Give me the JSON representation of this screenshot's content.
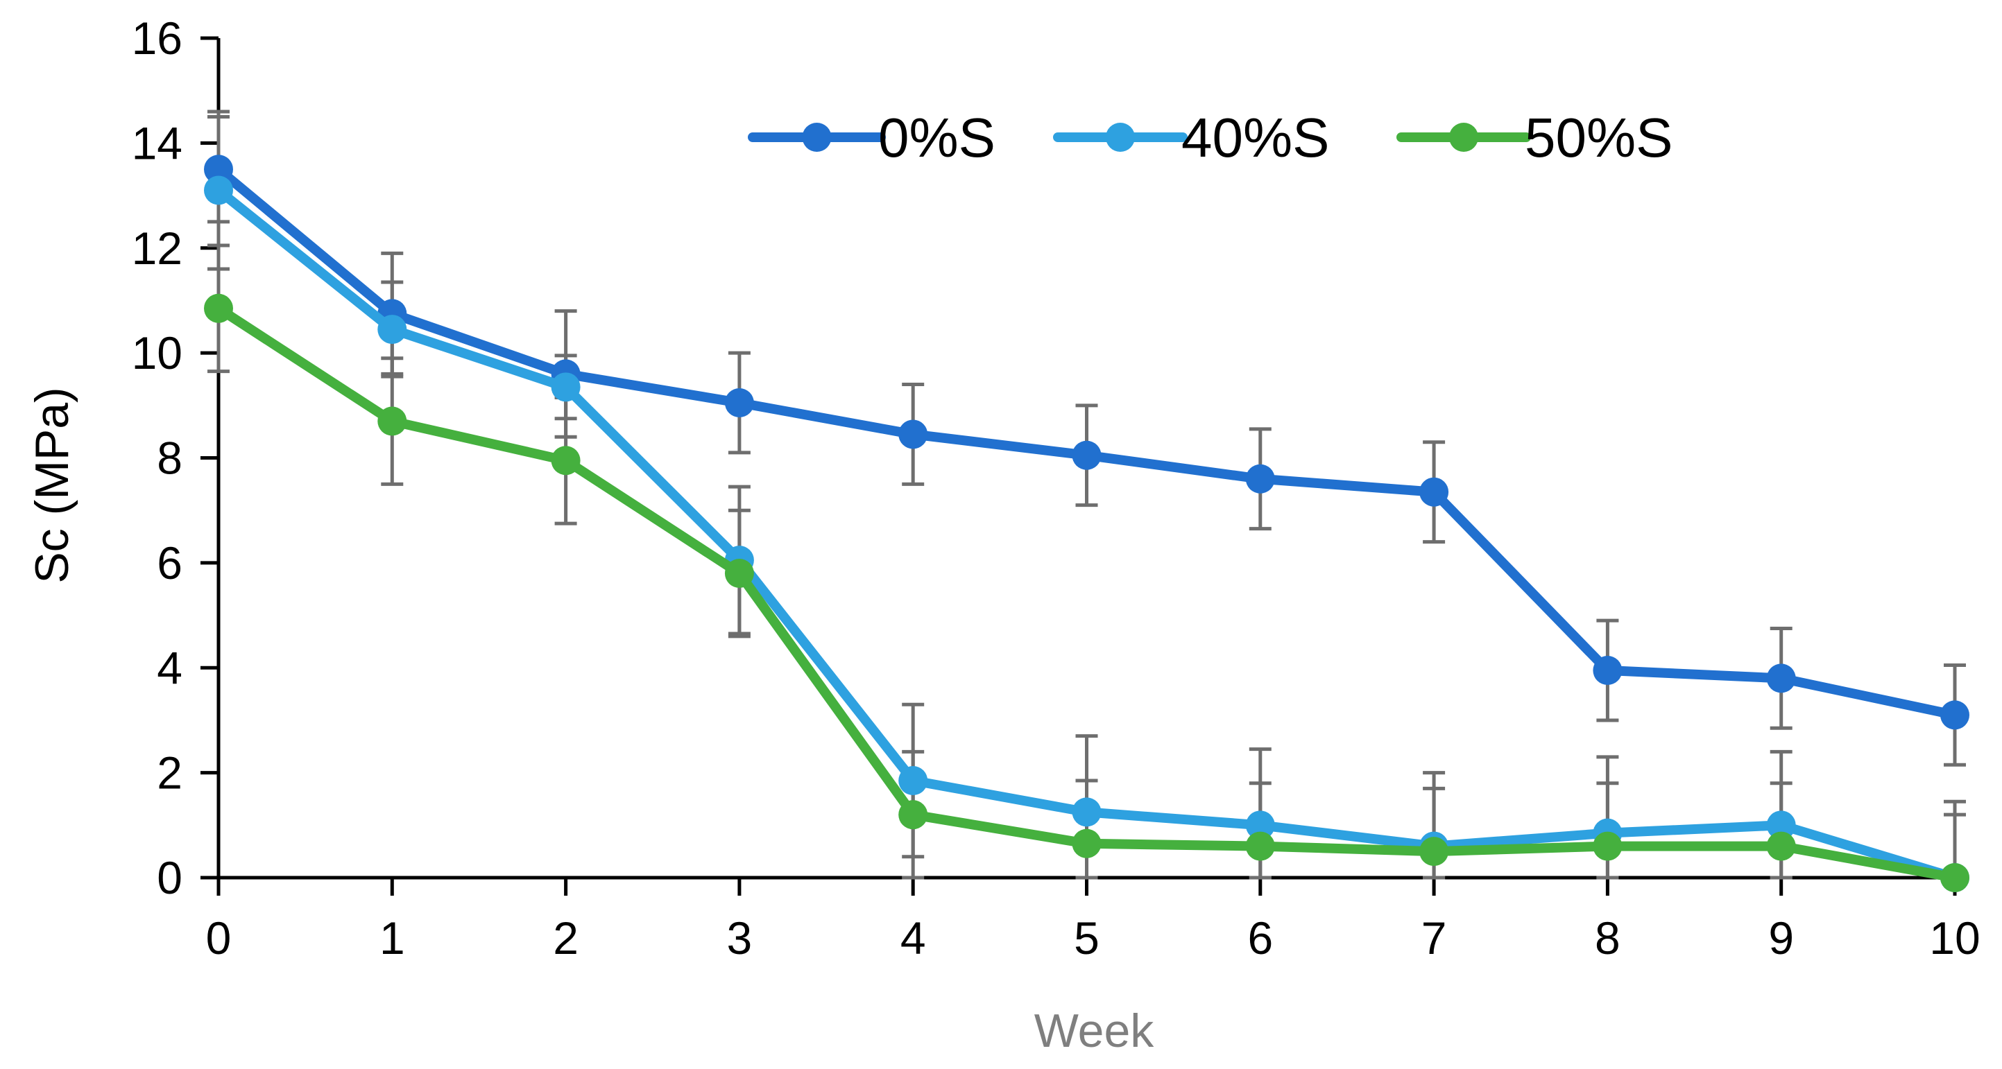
{
  "chart_data": {
    "type": "line",
    "title": "",
    "xlabel": "Week",
    "ylabel": "Sc (MPa)",
    "x": [
      0,
      1,
      2,
      3,
      4,
      5,
      6,
      7,
      8,
      9,
      10
    ],
    "xlim": [
      0,
      10
    ],
    "ylim": [
      0,
      16
    ],
    "yticks": [
      0,
      2,
      4,
      6,
      8,
      10,
      12,
      14,
      16
    ],
    "xticks": [
      0,
      1,
      2,
      3,
      4,
      5,
      6,
      7,
      8,
      9,
      10
    ],
    "grid": false,
    "legend_position": "top-center",
    "series": [
      {
        "name": "0%S",
        "color": "#2170CF",
        "values": [
          13.5,
          10.75,
          9.6,
          9.05,
          8.45,
          8.05,
          7.6,
          7.35,
          3.95,
          3.8,
          3.1
        ],
        "errors": [
          1.0,
          1.15,
          1.2,
          0.95,
          0.95,
          0.95,
          0.95,
          0.95,
          0.95,
          0.95,
          0.95
        ]
      },
      {
        "name": "40%S",
        "color": "#2EA1E0",
        "values": [
          13.1,
          10.45,
          9.35,
          6.05,
          1.85,
          1.25,
          1.0,
          0.6,
          0.85,
          1.0,
          0.0
        ],
        "errors": [
          1.5,
          0.9,
          0.6,
          1.4,
          1.45,
          1.45,
          1.45,
          1.4,
          1.45,
          1.4,
          1.45
        ]
      },
      {
        "name": "50%S",
        "color": "#45B03E",
        "values": [
          10.85,
          8.7,
          7.95,
          5.8,
          1.2,
          0.65,
          0.6,
          0.5,
          0.6,
          0.6,
          0.0
        ],
        "errors": [
          1.2,
          1.2,
          1.2,
          1.2,
          1.2,
          1.2,
          1.2,
          1.2,
          1.2,
          1.2,
          1.2
        ]
      }
    ]
  }
}
